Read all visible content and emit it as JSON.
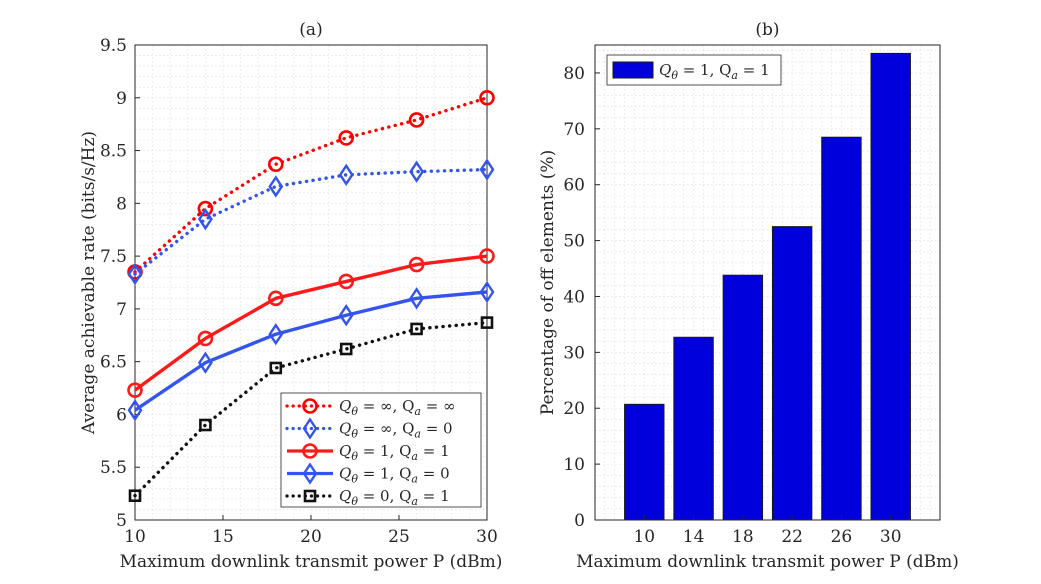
{
  "chart_data": [
    {
      "type": "line",
      "title": "(a)",
      "xlabel": "Maximum downlink transmit power P (dBm)",
      "ylabel": "Average achievable rate (bits/s/Hz)",
      "xlim": [
        10,
        30
      ],
      "ylim": [
        5,
        9.5
      ],
      "xticks": [
        10,
        15,
        20,
        25,
        30
      ],
      "yticks": [
        5,
        5.5,
        6,
        6.5,
        7,
        7.5,
        8,
        8.5,
        9,
        9.5
      ],
      "ytick_labels": [
        "5",
        "5.5",
        "6",
        "6.5",
        "7",
        "7.5",
        "8",
        "8.5",
        "9",
        "9.5"
      ],
      "grid": true,
      "legend_position": "bottom-right",
      "x": [
        10,
        14,
        18,
        22,
        26,
        30
      ],
      "series": [
        {
          "name": "Qθ = ∞, Qa = ∞",
          "legend_main": "Q",
          "legend_sub1": "θ",
          "legend_eq1": " = ∞, Q",
          "legend_sub2": "a",
          "legend_eq2": " = ∞",
          "color": "#ff0000",
          "style": "dotted",
          "marker": "circle",
          "values": [
            7.35,
            7.95,
            8.37,
            8.62,
            8.79,
            9.0
          ]
        },
        {
          "name": "Qθ = ∞, Qa = 0",
          "legend_main": "Q",
          "legend_sub1": "θ",
          "legend_eq1": " = ∞, Q",
          "legend_sub2": "a",
          "legend_eq2": " = 0",
          "color": "#3355ee",
          "style": "dotted",
          "marker": "diamond",
          "values": [
            7.33,
            7.85,
            8.16,
            8.27,
            8.3,
            8.32
          ]
        },
        {
          "name": "Qθ = 1, Qa = 1",
          "legend_main": "Q",
          "legend_sub1": "θ",
          "legend_eq1": " = 1, Q",
          "legend_sub2": "a",
          "legend_eq2": " = 1",
          "color": "#ff1a1a",
          "style": "solid",
          "marker": "circle",
          "values": [
            6.23,
            6.72,
            7.1,
            7.26,
            7.42,
            7.5
          ]
        },
        {
          "name": "Qθ = 1, Qa = 0",
          "legend_main": "Q",
          "legend_sub1": "θ",
          "legend_eq1": " = 1, Q",
          "legend_sub2": "a",
          "legend_eq2": " = 0",
          "color": "#3355ee",
          "style": "solid",
          "marker": "diamond",
          "values": [
            6.04,
            6.49,
            6.76,
            6.94,
            7.1,
            7.16
          ]
        },
        {
          "name": "Qθ = 0, Qa = 1",
          "legend_main": "Q",
          "legend_sub1": "θ",
          "legend_eq1": " = 0, Q",
          "legend_sub2": "a",
          "legend_eq2": " = 1",
          "color": "#111111",
          "style": "dotted",
          "marker": "square",
          "values": [
            5.23,
            5.9,
            6.44,
            6.62,
            6.81,
            6.87
          ]
        }
      ]
    },
    {
      "type": "bar",
      "title": "(b)",
      "xlabel": "Maximum downlink transmit power P (dBm)",
      "ylabel": "Percentage of off elements (%)",
      "categories": [
        "10",
        "14",
        "18",
        "22",
        "26",
        "30"
      ],
      "ylim": [
        0,
        85
      ],
      "yticks": [
        0,
        10,
        20,
        30,
        40,
        50,
        60,
        70,
        80
      ],
      "grid": true,
      "legend_position": "top-left",
      "series": [
        {
          "name": "Qθ = 1, Qa = 1",
          "legend_main": "Q",
          "legend_sub1": "θ",
          "legend_eq1": " = 1, Q",
          "legend_sub2": "a",
          "legend_eq2": " = 1",
          "color": "#0000dd",
          "values": [
            20.7,
            32.7,
            43.8,
            52.5,
            68.5,
            83.5
          ]
        }
      ]
    }
  ]
}
